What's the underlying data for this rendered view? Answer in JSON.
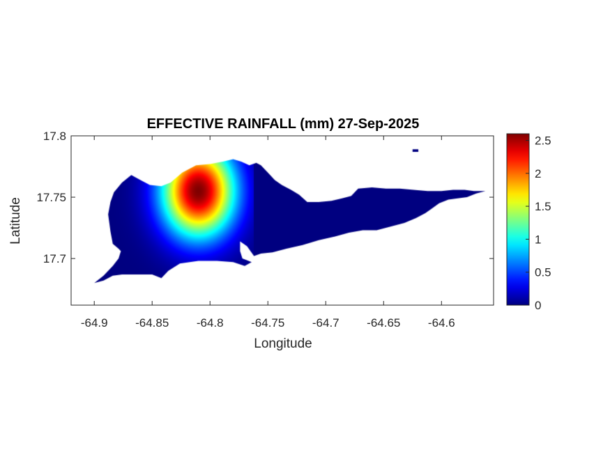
{
  "chart_data": {
    "type": "heatmap",
    "title": "EFFECTIVE RAINFALL (mm) 27-Sep-2025",
    "xlabel": "Longitude",
    "ylabel": "Latitude",
    "xlim": [
      -64.92,
      -64.555
    ],
    "ylim": [
      17.662,
      17.8
    ],
    "x_ticks": [
      {
        "value": -64.9,
        "label": "-64.9"
      },
      {
        "value": -64.85,
        "label": "-64.85"
      },
      {
        "value": -64.8,
        "label": "-64.8"
      },
      {
        "value": -64.75,
        "label": "-64.75"
      },
      {
        "value": -64.7,
        "label": "-64.7"
      },
      {
        "value": -64.65,
        "label": "-64.65"
      },
      {
        "value": -64.6,
        "label": "-64.6"
      }
    ],
    "y_ticks": [
      {
        "value": 17.7,
        "label": "17.7"
      },
      {
        "value": 17.75,
        "label": "17.75"
      },
      {
        "value": 17.8,
        "label": "17.8"
      }
    ],
    "colorbar": {
      "colormap": "jet",
      "range": [
        0,
        2.6
      ],
      "ticks": [
        {
          "value": 0,
          "label": "0"
        },
        {
          "value": 0.5,
          "label": "0.5"
        },
        {
          "value": 1,
          "label": "1"
        },
        {
          "value": 1.5,
          "label": "1.5"
        },
        {
          "value": 2,
          "label": "2"
        },
        {
          "value": 2.5,
          "label": "2.5"
        }
      ]
    },
    "peak": {
      "lon": -64.81,
      "lat": 17.755,
      "value": 2.6
    },
    "background_value": 0,
    "island_outline": [
      [
        -64.9,
        17.68
      ],
      [
        -64.892,
        17.686
      ],
      [
        -64.884,
        17.694
      ],
      [
        -64.879,
        17.7
      ],
      [
        -64.877,
        17.706
      ],
      [
        -64.879,
        17.708
      ],
      [
        -64.884,
        17.712
      ],
      [
        -64.886,
        17.722
      ],
      [
        -64.888,
        17.736
      ],
      [
        -64.886,
        17.746
      ],
      [
        -64.883,
        17.754
      ],
      [
        -64.876,
        17.762
      ],
      [
        -64.868,
        17.768
      ],
      [
        -64.86,
        17.764
      ],
      [
        -64.852,
        17.76
      ],
      [
        -64.842,
        17.759
      ],
      [
        -64.834,
        17.762
      ],
      [
        -64.824,
        17.77
      ],
      [
        -64.812,
        17.776
      ],
      [
        -64.8,
        17.777
      ],
      [
        -64.789,
        17.779
      ],
      [
        -64.78,
        17.781
      ],
      [
        -64.773,
        17.779
      ],
      [
        -64.766,
        17.776
      ],
      [
        -64.76,
        17.778
      ],
      [
        -64.756,
        17.776
      ],
      [
        -64.75,
        17.77
      ],
      [
        -64.744,
        17.764
      ],
      [
        -64.738,
        17.76
      ],
      [
        -64.73,
        17.756
      ],
      [
        -64.723,
        17.752
      ],
      [
        -64.716,
        17.746
      ],
      [
        -64.706,
        17.746
      ],
      [
        -64.695,
        17.747
      ],
      [
        -64.686,
        17.749
      ],
      [
        -64.678,
        17.751
      ],
      [
        -64.672,
        17.757
      ],
      [
        -64.66,
        17.758
      ],
      [
        -64.648,
        17.757
      ],
      [
        -64.636,
        17.757
      ],
      [
        -64.624,
        17.756
      ],
      [
        -64.612,
        17.755
      ],
      [
        -64.6,
        17.755
      ],
      [
        -64.59,
        17.756
      ],
      [
        -64.58,
        17.756
      ],
      [
        -64.572,
        17.755
      ],
      [
        -64.562,
        17.755
      ],
      [
        -64.57,
        17.753
      ],
      [
        -64.578,
        17.75
      ],
      [
        -64.586,
        17.749
      ],
      [
        -64.594,
        17.748
      ],
      [
        -64.602,
        17.745
      ],
      [
        -64.608,
        17.741
      ],
      [
        -64.614,
        17.737
      ],
      [
        -64.622,
        17.733
      ],
      [
        -64.632,
        17.729
      ],
      [
        -64.644,
        17.726
      ],
      [
        -64.656,
        17.723
      ],
      [
        -64.668,
        17.723
      ],
      [
        -64.68,
        17.721
      ],
      [
        -64.692,
        17.718
      ],
      [
        -64.706,
        17.715
      ],
      [
        -64.72,
        17.711
      ],
      [
        -64.734,
        17.708
      ],
      [
        -64.746,
        17.705
      ],
      [
        -64.756,
        17.704
      ],
      [
        -64.762,
        17.702
      ],
      [
        -64.768,
        17.71
      ],
      [
        -64.774,
        17.714
      ],
      [
        -64.774,
        17.706
      ],
      [
        -64.772,
        17.7
      ],
      [
        -64.764,
        17.697
      ],
      [
        -64.77,
        17.694
      ],
      [
        -64.78,
        17.697
      ],
      [
        -64.794,
        17.698
      ],
      [
        -64.81,
        17.698
      ],
      [
        -64.826,
        17.696
      ],
      [
        -64.836,
        17.69
      ],
      [
        -64.842,
        17.684
      ],
      [
        -64.85,
        17.687
      ],
      [
        -64.862,
        17.687
      ],
      [
        -64.876,
        17.687
      ],
      [
        -64.884,
        17.686
      ],
      [
        -64.892,
        17.682
      ],
      [
        -64.9,
        17.68
      ]
    ],
    "islets": [
      [
        [
          -64.625,
          17.789
        ],
        [
          -64.62,
          17.789
        ],
        [
          -64.62,
          17.787
        ],
        [
          -64.625,
          17.787
        ]
      ]
    ]
  }
}
